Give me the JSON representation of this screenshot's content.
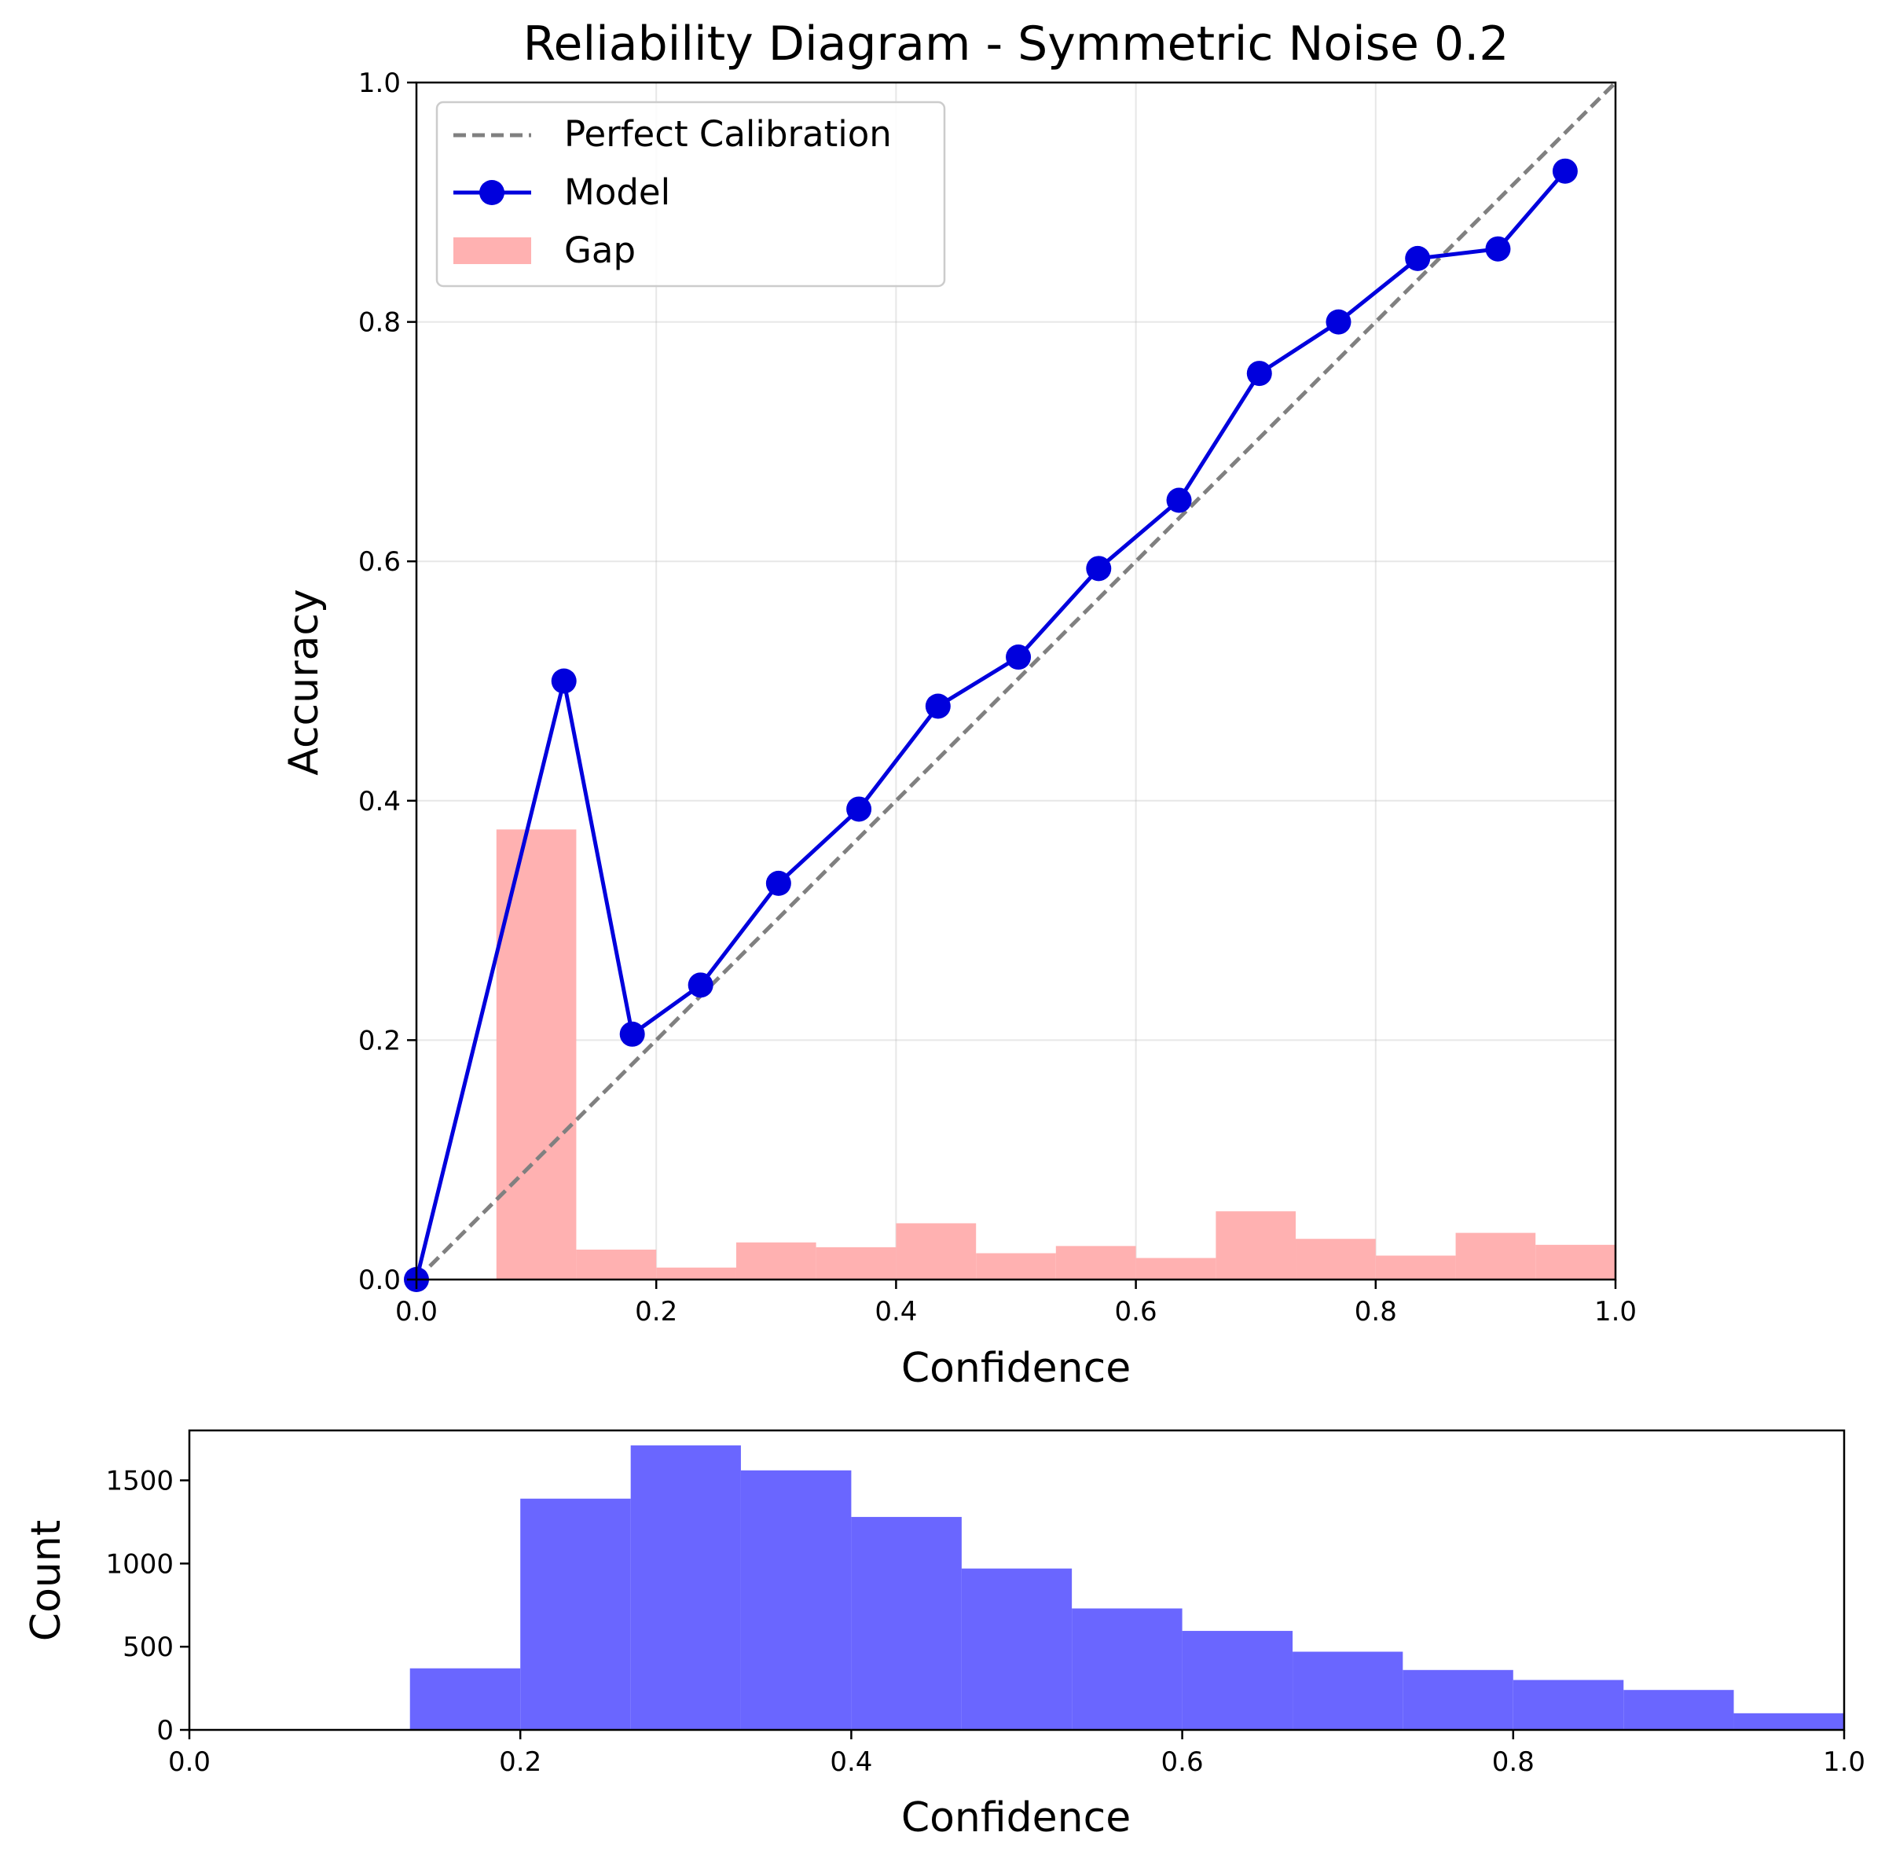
{
  "chart_data": [
    {
      "type": "line",
      "title": "Reliability Diagram - Symmetric Noise 0.2",
      "xlabel": "Confidence",
      "ylabel": "Accuracy",
      "xlim": [
        0,
        1
      ],
      "ylim": [
        0,
        1
      ],
      "xticks": [
        "0.0",
        "0.2",
        "0.4",
        "0.6",
        "0.8",
        "1.0"
      ],
      "yticks": [
        "0.0",
        "0.2",
        "0.4",
        "0.6",
        "0.8",
        "1.0"
      ],
      "grid": true,
      "legend_position": "top-left",
      "legend": [
        "Perfect Calibration",
        "Model",
        "Gap"
      ],
      "series": [
        {
          "name": "Perfect Calibration",
          "kind": "line",
          "style": "dashed",
          "color": "#808080",
          "x": [
            0,
            1
          ],
          "y": [
            0,
            1
          ]
        },
        {
          "name": "Model",
          "kind": "line-marker",
          "color": "#0000dd",
          "x": [
            0.0,
            0.123,
            0.18,
            0.237,
            0.302,
            0.369,
            0.435,
            0.502,
            0.569,
            0.636,
            0.703,
            0.769,
            0.835,
            0.902,
            0.958
          ],
          "y": [
            0.0,
            0.5,
            0.205,
            0.246,
            0.331,
            0.393,
            0.479,
            0.52,
            0.594,
            0.651,
            0.757,
            0.8,
            0.853,
            0.861,
            0.926
          ]
        },
        {
          "name": "Gap",
          "kind": "bar",
          "color": "#ffb1b1",
          "bin_edges": [
            0.0,
            0.0667,
            0.1333,
            0.2,
            0.2667,
            0.3333,
            0.4,
            0.4667,
            0.5333,
            0.6,
            0.6667,
            0.7333,
            0.8,
            0.8667,
            0.9333,
            1.0
          ],
          "values": [
            0.0,
            0.376,
            0.025,
            0.01,
            0.031,
            0.027,
            0.047,
            0.022,
            0.028,
            0.018,
            0.057,
            0.034,
            0.02,
            0.039,
            0.029
          ]
        }
      ]
    },
    {
      "type": "bar",
      "title": "",
      "xlabel": "Confidence",
      "ylabel": "Count",
      "xlim": [
        0,
        1
      ],
      "ylim": [
        0,
        1800
      ],
      "xticks": [
        "0.0",
        "0.2",
        "0.4",
        "0.6",
        "0.8",
        "1.0"
      ],
      "yticks": [
        "0",
        "500",
        "1000",
        "1500"
      ],
      "grid": false,
      "color": "#6a66ff",
      "bin_edges": [
        0.0,
        0.0667,
        0.1333,
        0.2,
        0.2667,
        0.3333,
        0.4,
        0.4667,
        0.5333,
        0.6,
        0.6667,
        0.7333,
        0.8,
        0.8667,
        0.9333,
        1.0
      ],
      "values": [
        0,
        0,
        370,
        1390,
        1710,
        1560,
        1280,
        970,
        730,
        595,
        470,
        360,
        300,
        240,
        100
      ]
    }
  ]
}
